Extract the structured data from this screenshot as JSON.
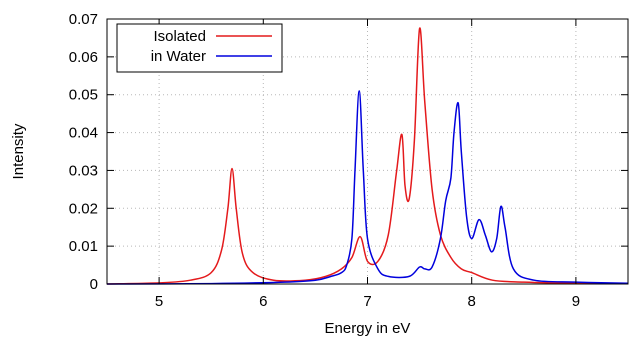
{
  "chart_data": {
    "type": "line",
    "xlabel": "Energy in eV",
    "ylabel": "Intensity",
    "xlim": [
      4.5,
      9.5
    ],
    "ylim": [
      0,
      0.07
    ],
    "xticks": [
      "5",
      "6",
      "7",
      "8",
      "9"
    ],
    "yticks": [
      "0",
      "0.01",
      "0.02",
      "0.03",
      "0.04",
      "0.05",
      "0.06",
      "0.07"
    ],
    "grid": true,
    "legend_position": "top-left",
    "series": [
      {
        "name": "Isolated",
        "color": "#e41a1c",
        "x": [
          4.5,
          5.0,
          5.3,
          5.5,
          5.6,
          5.66,
          5.7,
          5.74,
          5.8,
          5.9,
          6.1,
          6.4,
          6.6,
          6.75,
          6.85,
          6.93,
          7.0,
          7.1,
          7.2,
          7.28,
          7.33,
          7.36,
          7.4,
          7.45,
          7.5,
          7.55,
          7.62,
          7.7,
          7.8,
          7.9,
          8.0,
          8.2,
          8.5,
          9.0,
          9.5
        ],
        "y": [
          0.0,
          0.0003,
          0.001,
          0.003,
          0.009,
          0.02,
          0.0305,
          0.02,
          0.008,
          0.003,
          0.001,
          0.001,
          0.002,
          0.004,
          0.007,
          0.0125,
          0.006,
          0.006,
          0.013,
          0.03,
          0.0395,
          0.026,
          0.0225,
          0.038,
          0.0675,
          0.048,
          0.025,
          0.013,
          0.007,
          0.004,
          0.003,
          0.001,
          0.0005,
          0.0002,
          0.0001
        ]
      },
      {
        "name": "in Water",
        "color": "#0000dd",
        "x": [
          4.5,
          5.5,
          6.2,
          6.5,
          6.65,
          6.75,
          6.8,
          6.85,
          6.88,
          6.92,
          6.96,
          7.0,
          7.1,
          7.2,
          7.4,
          7.5,
          7.55,
          7.62,
          7.7,
          7.75,
          7.8,
          7.83,
          7.87,
          7.9,
          7.95,
          8.0,
          8.07,
          8.13,
          8.19,
          8.24,
          8.28,
          8.32,
          8.4,
          8.6,
          9.0,
          9.5
        ],
        "y": [
          0.0,
          0.0001,
          0.0005,
          0.001,
          0.002,
          0.003,
          0.005,
          0.012,
          0.03,
          0.051,
          0.03,
          0.012,
          0.004,
          0.002,
          0.002,
          0.0045,
          0.004,
          0.0045,
          0.012,
          0.022,
          0.028,
          0.04,
          0.0478,
          0.035,
          0.018,
          0.012,
          0.017,
          0.013,
          0.0085,
          0.012,
          0.0205,
          0.015,
          0.004,
          0.001,
          0.0005,
          0.0002
        ]
      }
    ]
  }
}
